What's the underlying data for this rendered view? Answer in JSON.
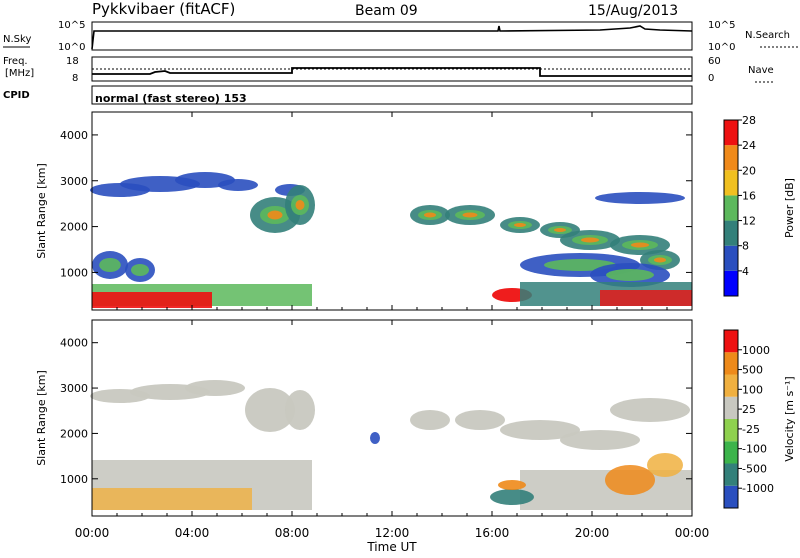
{
  "header": {
    "station": "Pykkvibaer (fitACF)",
    "beam": "Beam 09",
    "date": "15/Aug/2013"
  },
  "top_panels": {
    "nsky_label": "N.Sky",
    "nsky_ticks": [
      "10^5",
      "10^0"
    ],
    "nsearch_label": "N.Search",
    "nsearch_ticks": [
      "10^5",
      "10^0"
    ],
    "freq_label_1": "Freq.",
    "freq_label_2": "[MHz]",
    "freq_ticks": [
      "18",
      "8"
    ],
    "nave_label": "Nave",
    "nave_ticks": [
      "60",
      "0"
    ],
    "cpid_label": "CPID",
    "cpid_value": "normal (fast stereo) 153"
  },
  "chart_data": [
    {
      "type": "heatmap",
      "name": "power",
      "ylabel": "Slant Range [km]",
      "ylim": [
        180,
        4500
      ],
      "yticks": [
        1000,
        2000,
        3000,
        4000
      ],
      "colorbar": {
        "label": "Power [dB]",
        "ticks": [
          "4",
          "8",
          "12",
          "16",
          "20",
          "24",
          "28"
        ],
        "colors": [
          "#0000ff",
          "#2a4fbf",
          "#33807a",
          "#5cb85c",
          "#f0c020",
          "#f08a1a",
          "#ee1111"
        ]
      }
    },
    {
      "type": "heatmap",
      "name": "velocity",
      "ylabel": "Slant Range [km]",
      "ylim": [
        180,
        4500
      ],
      "yticks": [
        1000,
        2000,
        3000,
        4000
      ],
      "colorbar": {
        "label": "Velocity [m s⁻¹]",
        "ticks": [
          "1000",
          "500",
          "100",
          "25",
          "-25",
          "-100",
          "-500",
          "-1000"
        ],
        "colors": [
          "#2a4fbf",
          "#33807a",
          "#3cb44b",
          "#8fd14f",
          "#c8c8c0",
          "#f0b040",
          "#ee8a1a",
          "#ee1111"
        ]
      }
    }
  ],
  "time_axis": {
    "label": "Time UT",
    "ticks": [
      "00:00",
      "04:00",
      "08:00",
      "12:00",
      "16:00",
      "20:00",
      "00:00"
    ]
  }
}
